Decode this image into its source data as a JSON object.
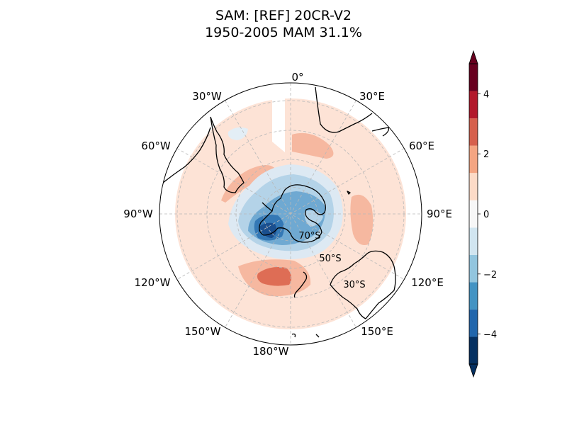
{
  "title": {
    "line1": "SAM: [REF] 20CR-V2",
    "line2": "1950-2005 MAM 31.1%"
  },
  "map": {
    "projection": "south-polar-stereographic",
    "longitude_labels": [
      "0°",
      "30°E",
      "60°E",
      "90°E",
      "120°E",
      "150°E",
      "180°W",
      "150°W",
      "120°W",
      "90°W",
      "60°W",
      "30°W"
    ],
    "latitude_labels": [
      "70°S",
      "50°S",
      "30°S"
    ],
    "gridlines": true
  },
  "colorbar": {
    "tick_labels": [
      "4",
      "2",
      "0",
      "−2",
      "−4"
    ],
    "level_colors": [
      "#053061",
      "#2166ac",
      "#4393c3",
      "#92c5de",
      "#d1e5f0",
      "#f7f7f7",
      "#fddbc7",
      "#f4a582",
      "#d6604d",
      "#b2182b",
      "#67001f"
    ],
    "range": [
      -5,
      5
    ],
    "extend": "both"
  }
}
